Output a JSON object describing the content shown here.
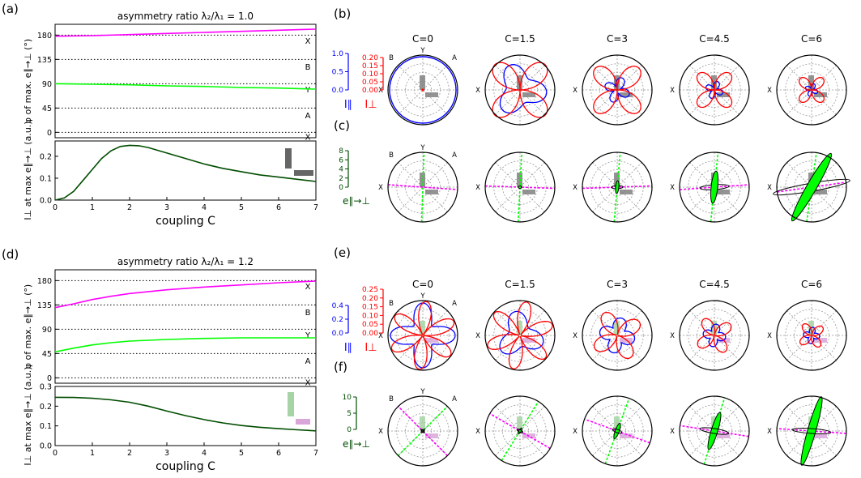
{
  "panel_labels": {
    "a": "(a)",
    "b": "(b)",
    "c": "(c)",
    "d": "(d)",
    "e": "(e)",
    "f": "(f)"
  },
  "colors": {
    "magenta": "#ff00ff",
    "green": "#00ff00",
    "darkgreen": "#004d00",
    "blue": "#0000ff",
    "red": "#ff0000",
    "rodgray": "#808080",
    "rodgreen_light": "#a6d4a6",
    "rodpink_light": "#d9a6d9"
  },
  "polar_columns": [
    "C=0",
    "C=1.5",
    "C=3",
    "C=4.5",
    "C=6"
  ],
  "polar_direction_labels": {
    "top": "Y",
    "left_top": "B",
    "right_top": "A",
    "right": "X"
  },
  "chart_data": [
    {
      "id": "a-top",
      "type": "line",
      "title": "asymmetry ratio λ₂/λ₁ = 1.0",
      "ylabel": "φ of max. e∥→⊥ (°)",
      "xlim": [
        0,
        7
      ],
      "ylim": [
        -10,
        200
      ],
      "yticks": [
        0,
        45,
        90,
        135,
        180
      ],
      "dotted_lines": [
        0,
        45,
        90,
        135,
        180
      ],
      "right_labels": [
        {
          "y": 170,
          "text": "X"
        },
        {
          "y": 122,
          "text": "B"
        },
        {
          "y": 80,
          "text": "Y"
        },
        {
          "y": 32,
          "text": "A"
        },
        {
          "y": -8,
          "text": "X"
        }
      ],
      "series": [
        {
          "color": "magenta",
          "x": [
            0,
            1,
            2,
            3,
            4,
            5,
            6,
            7
          ],
          "y": [
            178,
            179,
            181,
            183,
            185,
            187,
            189,
            191
          ]
        },
        {
          "color": "green",
          "x": [
            0,
            1,
            2,
            3,
            4,
            5,
            6,
            7
          ],
          "y": [
            90,
            89,
            88,
            86,
            85,
            83,
            82,
            80
          ]
        }
      ]
    },
    {
      "id": "a-bottom",
      "type": "line",
      "ylabel": "I⊥ at max e∥→⊥ (a.u.)",
      "xlabel": "coupling C",
      "xlim": [
        0,
        7
      ],
      "ylim": [
        0,
        0.27
      ],
      "xticks": [
        0,
        1,
        2,
        3,
        4,
        5,
        6,
        7
      ],
      "yticks": [
        0.0,
        0.1,
        0.2
      ],
      "series": [
        {
          "color": "darkgreen",
          "x": [
            0,
            0.25,
            0.5,
            0.75,
            1,
            1.25,
            1.5,
            1.75,
            2,
            2.25,
            2.5,
            3,
            3.5,
            4,
            4.5,
            5,
            5.5,
            6,
            6.5,
            7
          ],
          "y": [
            0.0,
            0.01,
            0.04,
            0.09,
            0.14,
            0.19,
            0.225,
            0.245,
            0.25,
            0.248,
            0.24,
            0.215,
            0.19,
            0.165,
            0.145,
            0.13,
            0.115,
            0.105,
            0.095,
            0.085
          ]
        }
      ]
    },
    {
      "id": "d-top",
      "type": "line",
      "title": "asymmetry ratio λ₂/λ₁ = 1.2",
      "ylabel": "φ of max. e∥→⊥ (°)",
      "xlim": [
        0,
        7
      ],
      "ylim": [
        -10,
        200
      ],
      "yticks": [
        0,
        45,
        90,
        135,
        180
      ],
      "dotted_lines": [
        0,
        45,
        90,
        135,
        180
      ],
      "right_labels": [
        {
          "y": 170,
          "text": "X"
        },
        {
          "y": 122,
          "text": "B"
        },
        {
          "y": 80,
          "text": "Y"
        },
        {
          "y": 32,
          "text": "A"
        },
        {
          "y": -8,
          "text": "X"
        }
      ],
      "series": [
        {
          "color": "magenta",
          "x": [
            0,
            0.5,
            1,
            1.5,
            2,
            3,
            4,
            5,
            6,
            7
          ],
          "y": [
            130,
            137,
            145,
            151,
            156,
            163,
            168,
            172,
            176,
            179
          ]
        },
        {
          "color": "green",
          "x": [
            0,
            0.5,
            1,
            1.5,
            2,
            3,
            4,
            5,
            6,
            7
          ],
          "y": [
            48,
            55,
            61,
            65,
            68,
            71,
            73,
            74,
            74,
            74
          ]
        }
      ]
    },
    {
      "id": "d-bottom",
      "type": "line",
      "ylabel": "I⊥ at max e∥→⊥ (a.u.)",
      "xlabel": "coupling C",
      "xlim": [
        0,
        7
      ],
      "ylim": [
        0,
        0.3
      ],
      "xticks": [
        0,
        1,
        2,
        3,
        4,
        5,
        6,
        7
      ],
      "yticks": [
        0.0,
        0.1,
        0.2,
        0.3
      ],
      "series": [
        {
          "color": "darkgreen",
          "x": [
            0,
            0.5,
            1,
            1.5,
            2,
            2.5,
            3,
            3.5,
            4,
            4.5,
            5,
            5.5,
            6,
            6.5,
            7
          ],
          "y": [
            0.245,
            0.244,
            0.24,
            0.232,
            0.22,
            0.2,
            0.175,
            0.152,
            0.132,
            0.115,
            0.102,
            0.093,
            0.086,
            0.08,
            0.075
          ]
        }
      ]
    },
    {
      "id": "b-scales",
      "type": "scale",
      "blue": {
        "label": "I∥",
        "ticks": [
          "0.0",
          "0.5",
          "1.0"
        ]
      },
      "red": {
        "label": "I⊥",
        "ticks": [
          "0.00",
          "0.05",
          "0.10",
          "0.15",
          "0.20"
        ]
      }
    },
    {
      "id": "c-scale",
      "type": "scale",
      "green": {
        "label": "e∥→⊥",
        "ticks": [
          "0",
          "2",
          "4",
          "6",
          "8"
        ]
      }
    },
    {
      "id": "e-scales",
      "type": "scale",
      "blue": {
        "label": "I∥",
        "ticks": [
          "0.0",
          "0.2",
          "0.4"
        ]
      },
      "red": {
        "label": "I⊥",
        "ticks": [
          "0.00",
          "0.05",
          "0.10",
          "0.15",
          "0.20",
          "0.25"
        ]
      }
    },
    {
      "id": "f-scale",
      "type": "scale",
      "green": {
        "label": "e∥→⊥",
        "ticks": [
          "0",
          "5",
          "10"
        ]
      }
    }
  ]
}
